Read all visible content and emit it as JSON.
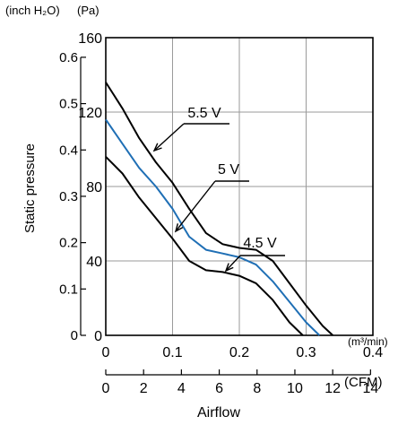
{
  "chart_data": {
    "type": "line",
    "units": {
      "left_outer": "(inch H₂O)",
      "left_inner": "(Pa)",
      "bottom_inner": "(m³/min)",
      "bottom_outer": "(CFM)"
    },
    "ylabel": "Static pressure",
    "xlabel": "Airflow",
    "xlim": [
      0,
      0.4
    ],
    "ylim": [
      0,
      160
    ],
    "grid": true,
    "x_ticks": [
      "0",
      "0.1",
      "0.2",
      "0.3",
      "0.4"
    ],
    "x_ticks_values": [
      0,
      0.1,
      0.2,
      0.3,
      0.4
    ],
    "cfm_ticks": [
      "0",
      "2",
      "4",
      "6",
      "8",
      "10",
      "12",
      "14"
    ],
    "cfm_ticks_values": [
      0,
      2,
      4,
      6,
      8,
      10,
      12,
      14
    ],
    "pa_ticks": [
      "0",
      "40",
      "80",
      "120",
      "160"
    ],
    "pa_ticks_values": [
      0,
      40,
      80,
      120,
      160
    ],
    "inh2o_ticks": [
      "0",
      "0.1",
      "0.2",
      "0.3",
      "0.4",
      "0.5",
      "0.6"
    ],
    "inh2o_ticks_values": [
      0,
      0.1,
      0.2,
      0.3,
      0.4,
      0.5,
      0.6
    ],
    "series": [
      {
        "name": "5.5 V",
        "color": "#000000",
        "x": [
          0,
          0.025,
          0.05,
          0.075,
          0.1,
          0.125,
          0.15,
          0.175,
          0.2,
          0.225,
          0.25,
          0.275,
          0.3,
          0.325,
          0.34
        ],
        "y": [
          136,
          122,
          106,
          93,
          82,
          68,
          55,
          49,
          47,
          46,
          40,
          28,
          16,
          5,
          0
        ]
      },
      {
        "name": "5 V",
        "color": "#1f6fb5",
        "x": [
          0,
          0.025,
          0.05,
          0.075,
          0.1,
          0.125,
          0.15,
          0.175,
          0.2,
          0.225,
          0.25,
          0.275,
          0.3,
          0.32
        ],
        "y": [
          116,
          103,
          90,
          80,
          68,
          53,
          46,
          44,
          42,
          38,
          29,
          18,
          7,
          0
        ]
      },
      {
        "name": "4.5 V",
        "color": "#000000",
        "x": [
          0,
          0.025,
          0.05,
          0.075,
          0.1,
          0.125,
          0.15,
          0.175,
          0.2,
          0.225,
          0.25,
          0.275,
          0.295
        ],
        "y": [
          96,
          87,
          74,
          63,
          52,
          40,
          35,
          34,
          32,
          28,
          19,
          7,
          0
        ]
      }
    ],
    "annotations": [
      {
        "label": "5.5 V",
        "series": "5.5 V"
      },
      {
        "label": "5 V",
        "series": "5 V"
      },
      {
        "label": "4.5 V",
        "series": "4.5 V"
      }
    ]
  }
}
